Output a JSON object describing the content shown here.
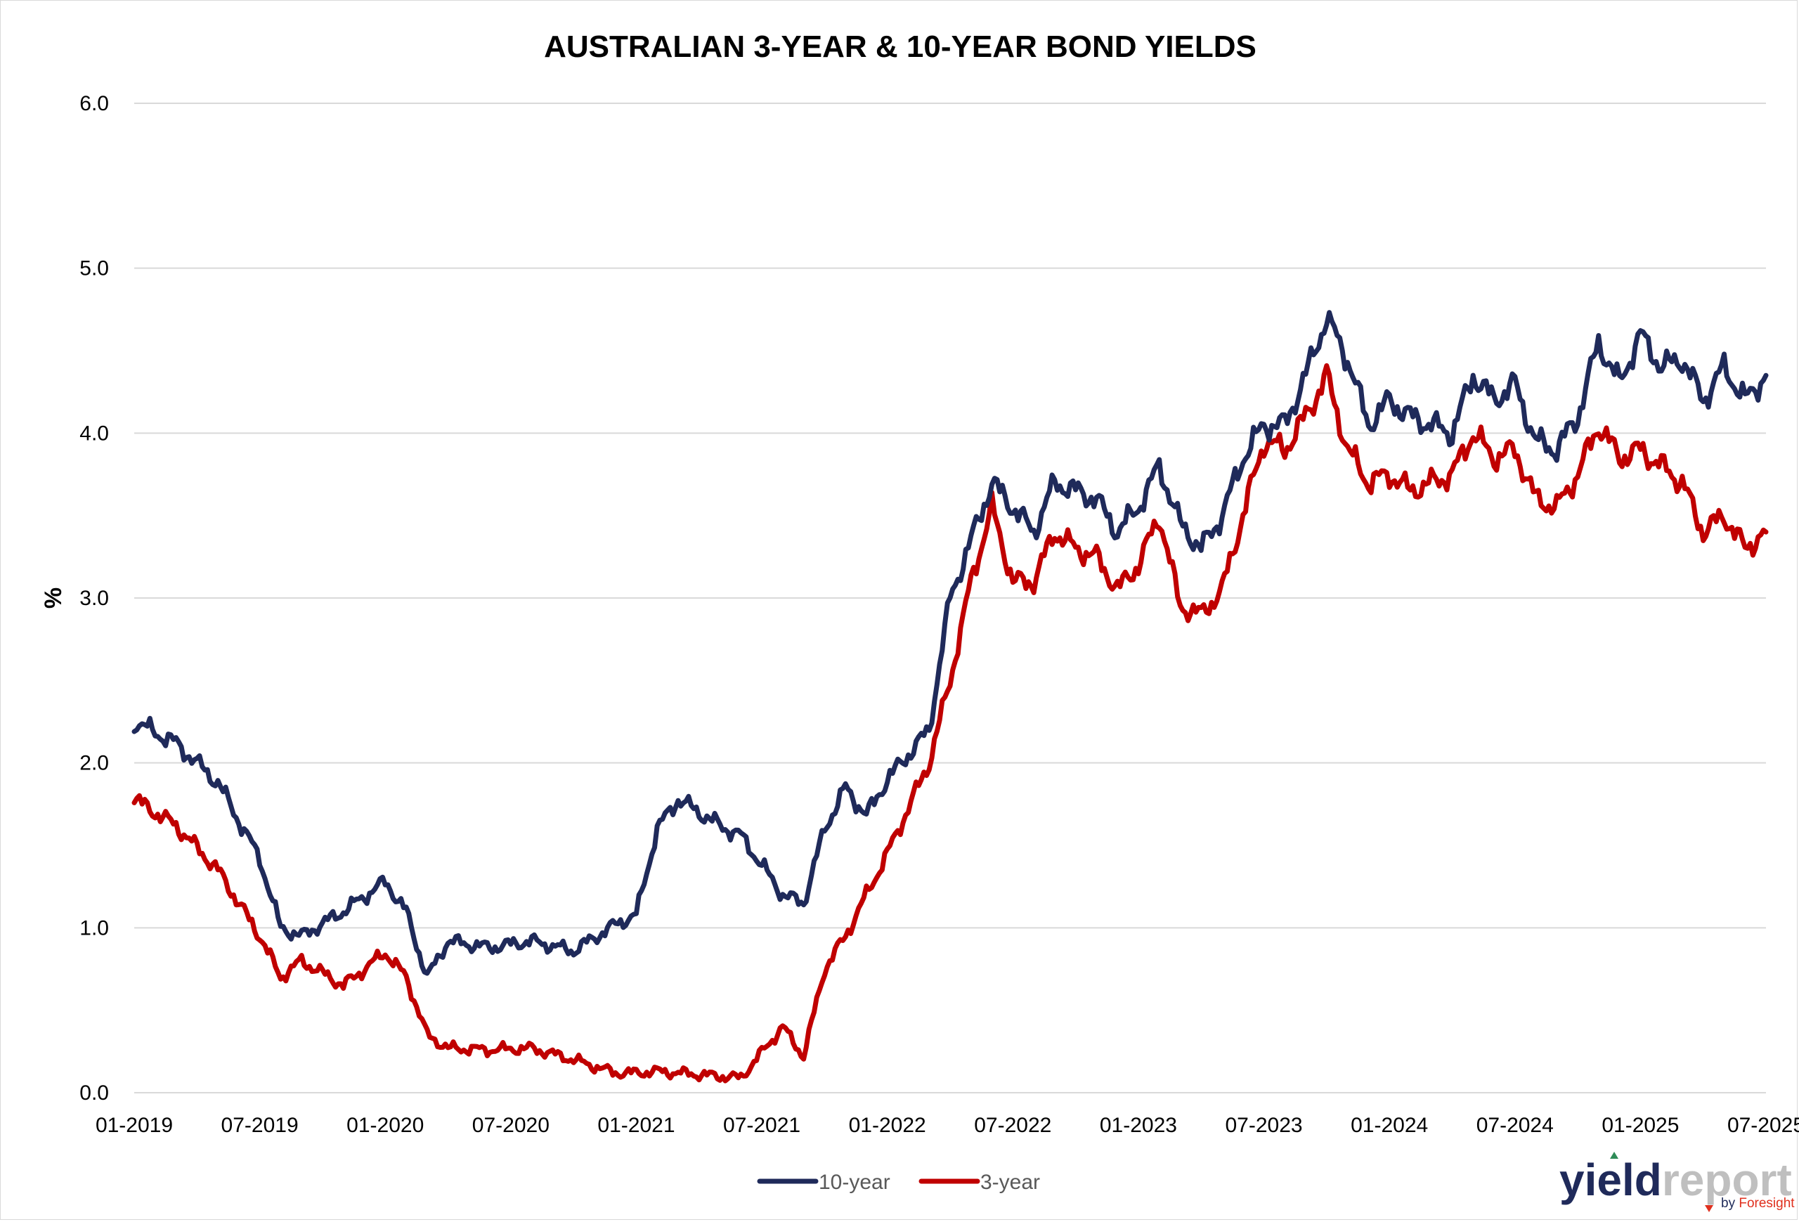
{
  "chart_data": {
    "type": "line",
    "title": "AUSTRALIAN 3-YEAR & 10-YEAR BOND YIELDS",
    "xlabel": "",
    "ylabel": "%",
    "ylim": [
      0,
      6
    ],
    "yticks": [
      "0.0",
      "1.0",
      "2.0",
      "3.0",
      "4.0",
      "5.0",
      "6.0"
    ],
    "xticks": [
      "01-2019",
      "07-2019",
      "01-2020",
      "07-2020",
      "01-2021",
      "07-2021",
      "01-2022",
      "07-2022",
      "01-2023",
      "07-2023",
      "01-2024",
      "07-2024",
      "01-2025",
      "07-2025"
    ],
    "grid": true,
    "legend": "bottom",
    "x": [
      "2019-01",
      "2019-03",
      "2019-05",
      "2019-07",
      "2019-08",
      "2019-09",
      "2019-11",
      "2020-01",
      "2020-02",
      "2020-03",
      "2020-04",
      "2020-06",
      "2020-08",
      "2020-10",
      "2020-12",
      "2021-01",
      "2021-02",
      "2021-03",
      "2021-05",
      "2021-06",
      "2021-08",
      "2021-09",
      "2021-10",
      "2021-11",
      "2021-12",
      "2022-01",
      "2022-03",
      "2022-04",
      "2022-05",
      "2022-06",
      "2022-07",
      "2022-08",
      "2022-09",
      "2022-10",
      "2022-11",
      "2022-12",
      "2023-01",
      "2023-02",
      "2023-03",
      "2023-04",
      "2023-05",
      "2023-06",
      "2023-07",
      "2023-08",
      "2023-09",
      "2023-10",
      "2023-11",
      "2023-12",
      "2024-01",
      "2024-02",
      "2024-04",
      "2024-05",
      "2024-06",
      "2024-07",
      "2024-08",
      "2024-09",
      "2024-10",
      "2024-11",
      "2024-12",
      "2025-01",
      "2025-02",
      "2025-03",
      "2025-04",
      "2025-05",
      "2025-06",
      "2025-07"
    ],
    "series": [
      {
        "name": "10-year",
        "color": "#1f2a5a",
        "values": [
          2.25,
          2.12,
          1.88,
          1.42,
          1.0,
          0.95,
          1.1,
          1.28,
          1.1,
          0.7,
          0.92,
          0.88,
          0.92,
          0.86,
          1.02,
          1.08,
          1.6,
          1.78,
          1.62,
          1.56,
          1.2,
          1.15,
          1.6,
          1.85,
          1.68,
          1.9,
          2.2,
          3.0,
          3.35,
          3.7,
          3.55,
          3.4,
          3.7,
          3.65,
          3.6,
          3.4,
          3.55,
          3.8,
          3.45,
          3.3,
          3.5,
          3.85,
          4.05,
          4.05,
          4.35,
          4.7,
          4.45,
          4.05,
          4.2,
          4.1,
          4.0,
          4.35,
          4.2,
          4.3,
          3.95,
          3.9,
          4.1,
          4.55,
          4.3,
          4.6,
          4.4,
          4.45,
          4.2,
          4.4,
          4.2,
          4.35
        ]
      },
      {
        "name": "3-year",
        "color": "#c00000",
        "values": [
          1.78,
          1.62,
          1.35,
          0.95,
          0.7,
          0.8,
          0.65,
          0.85,
          0.7,
          0.35,
          0.27,
          0.26,
          0.27,
          0.2,
          0.12,
          0.12,
          0.13,
          0.12,
          0.1,
          0.09,
          0.4,
          0.22,
          0.75,
          0.95,
          1.2,
          1.45,
          2.0,
          2.5,
          3.1,
          3.55,
          3.1,
          3.1,
          3.4,
          3.3,
          3.25,
          3.05,
          3.2,
          3.5,
          2.95,
          2.9,
          3.05,
          3.5,
          3.95,
          3.9,
          4.1,
          4.35,
          3.9,
          3.7,
          3.75,
          3.65,
          3.75,
          4.0,
          3.85,
          3.9,
          3.6,
          3.55,
          3.75,
          4.05,
          3.85,
          3.9,
          3.8,
          3.7,
          3.4,
          3.5,
          3.3,
          3.4
        ]
      }
    ]
  },
  "watermark": {
    "word1": "yield",
    "word2": "report",
    "by_text": "by ",
    "sub_brand": "Foresight"
  }
}
